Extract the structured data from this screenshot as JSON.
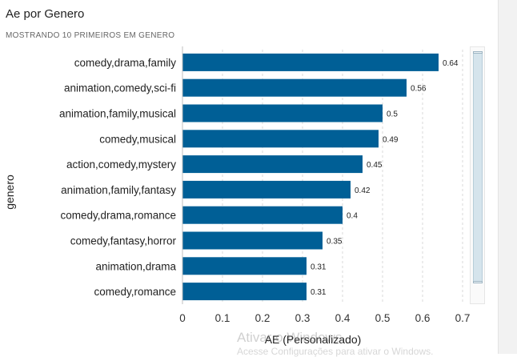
{
  "header": {
    "title": "Ae por Genero",
    "subtitle": "MOSTRANDO 10 PRIMEIROS EM GENERO"
  },
  "chart_data": {
    "type": "bar",
    "orientation": "horizontal",
    "categories": [
      "comedy,drama,family",
      "animation,comedy,sci-fi",
      "animation,family,musical",
      "comedy,musical",
      "action,comedy,mystery",
      "animation,family,fantasy",
      "comedy,drama,romance",
      "comedy,fantasy,horror",
      "animation,drama",
      "comedy,romance"
    ],
    "values": [
      0.64,
      0.56,
      0.5,
      0.49,
      0.45,
      0.42,
      0.4,
      0.35,
      0.31,
      0.31
    ],
    "data_labels": [
      "0.64",
      "0.56",
      "0.5",
      "0.49",
      "0.45",
      "0.42",
      "0.4",
      "0.35",
      "0.31",
      "0.31"
    ],
    "xlabel": "AE (Personalizado)",
    "ylabel": "genero",
    "xlim": [
      0,
      0.7
    ],
    "xticks": [
      0,
      0.1,
      0.2,
      0.3,
      0.4,
      0.5,
      0.6,
      0.7
    ],
    "xtick_labels": [
      "0",
      "0.1",
      "0.2",
      "0.3",
      "0.4",
      "0.5",
      "0.6",
      "0.7"
    ],
    "bar_color": "#005f96",
    "grid": "vertical-dashed"
  },
  "watermark": {
    "line1": "Ativar o Windows",
    "line2": "Acesse Configurações para ativar o Windows."
  }
}
